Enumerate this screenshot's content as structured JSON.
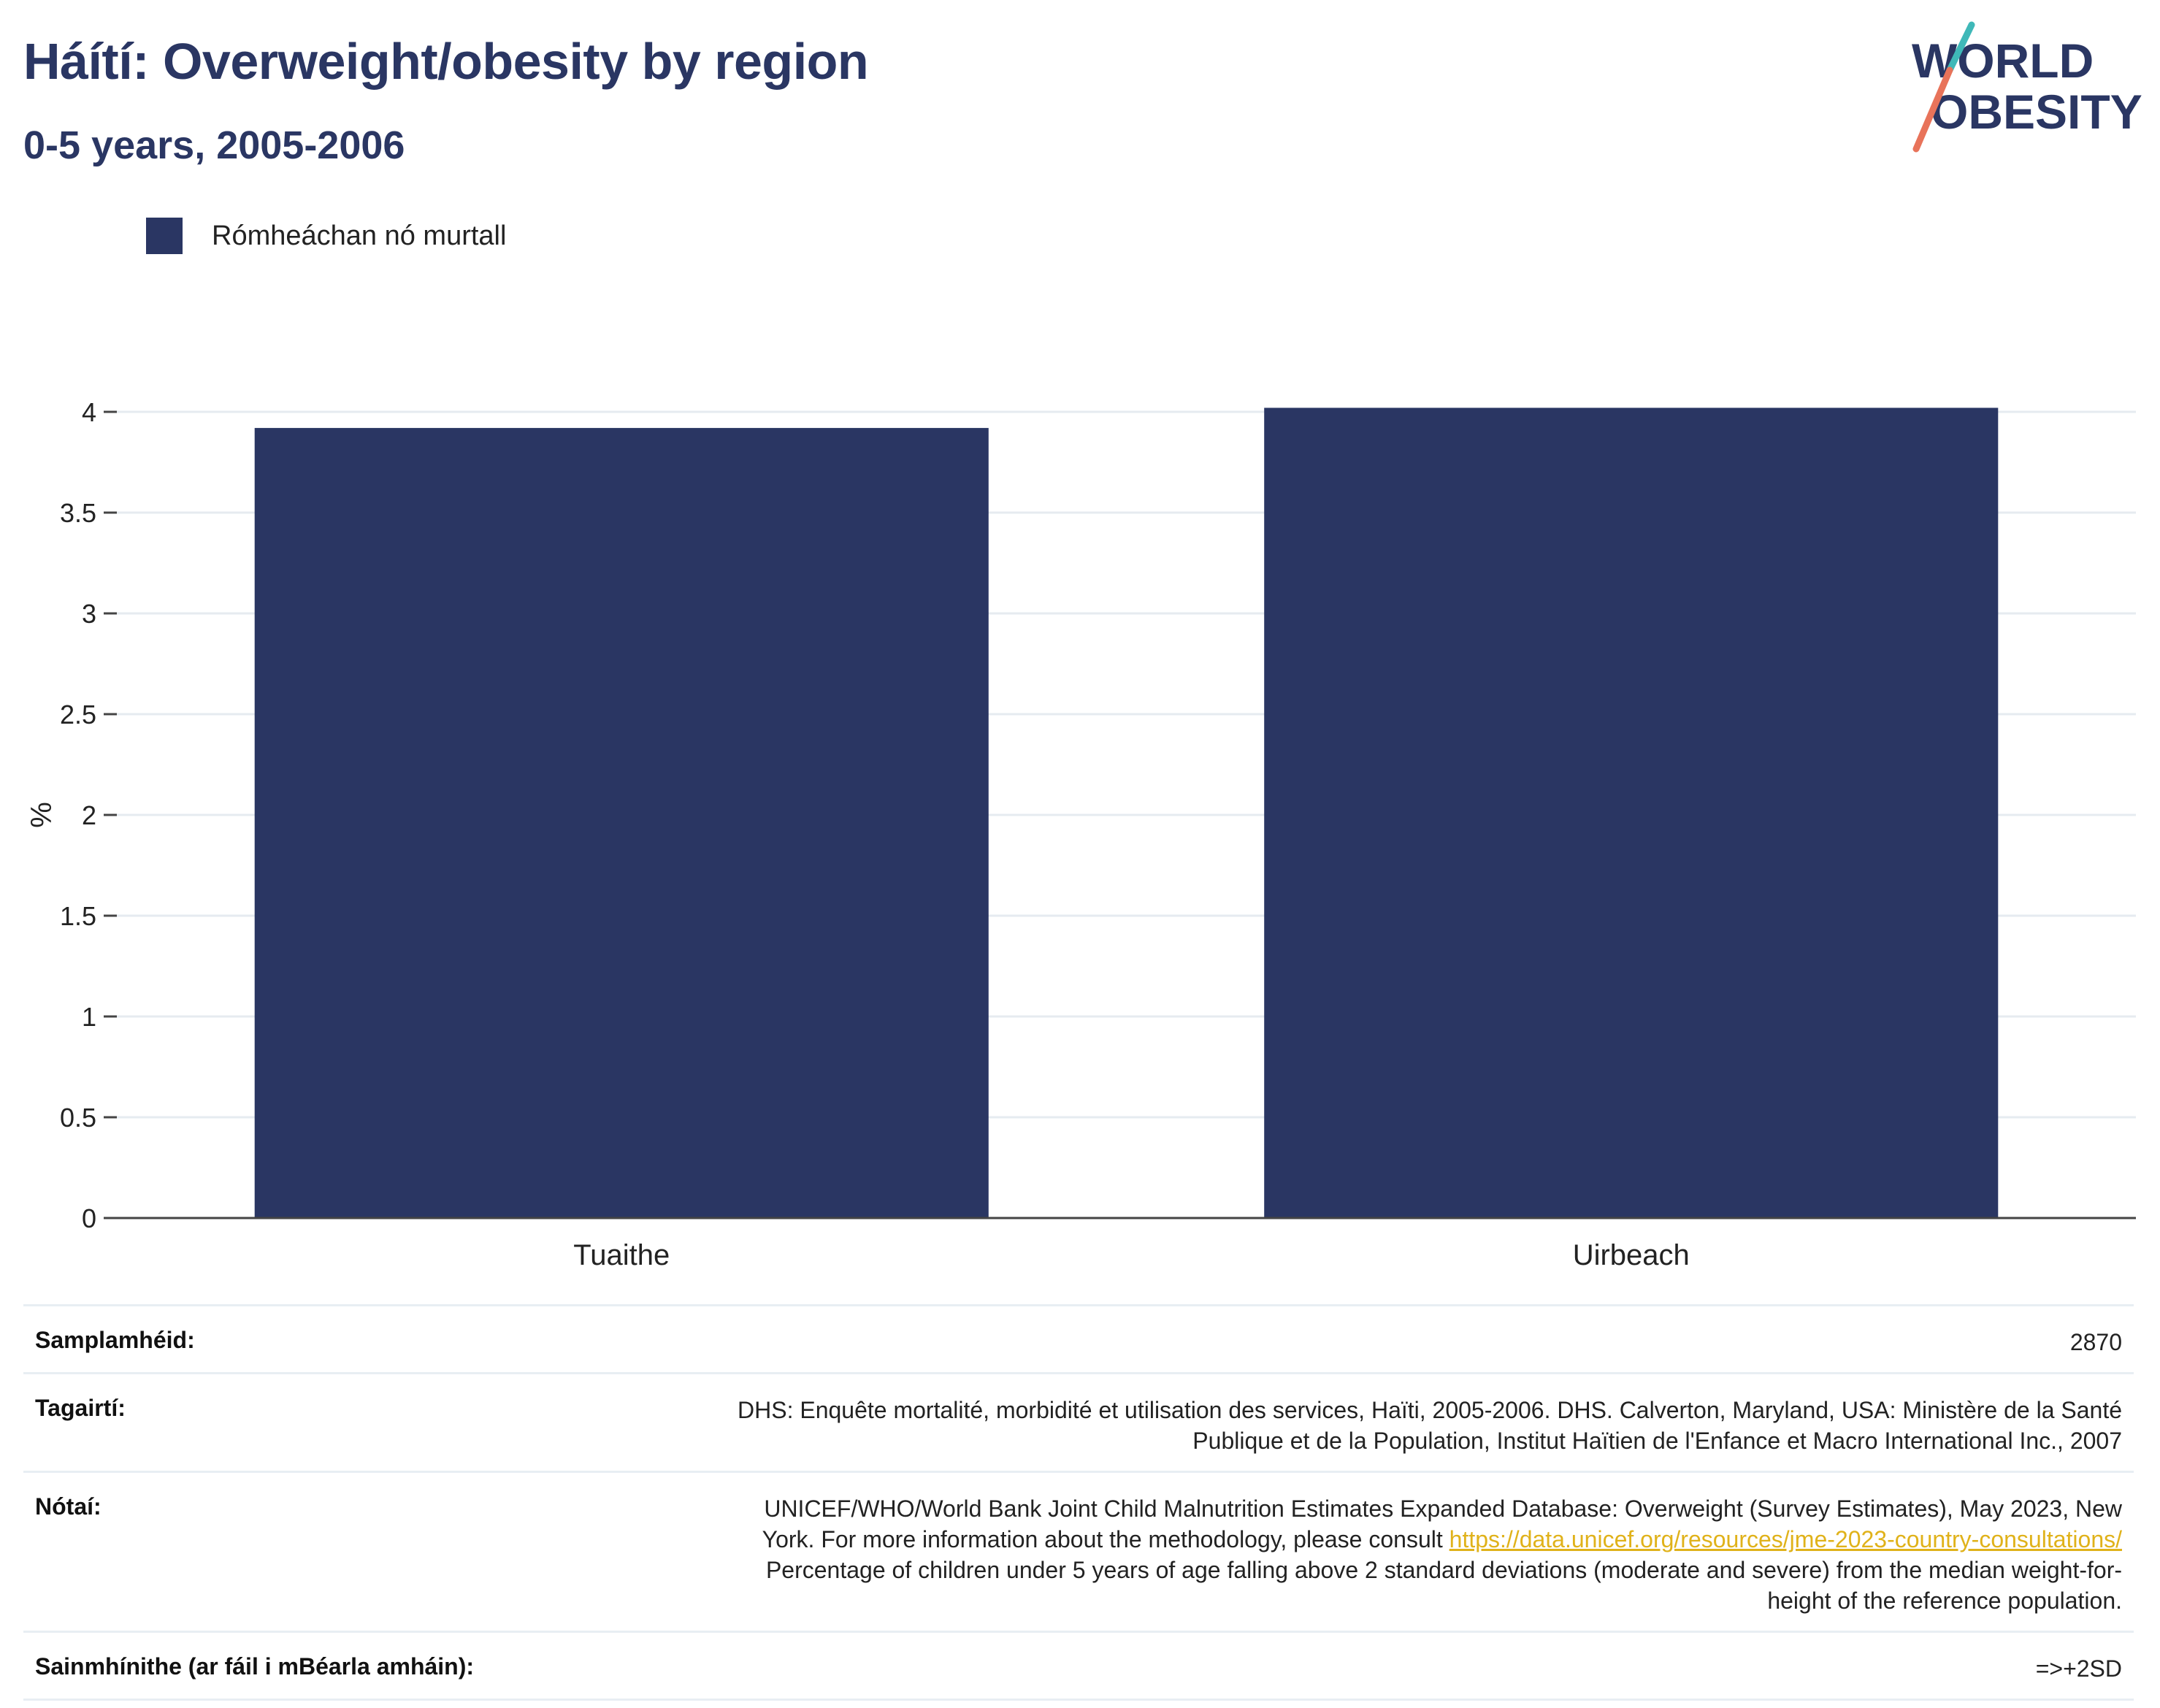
{
  "title": "Háítí: Overweight/obesity by region",
  "subtitle": "0-5 years, 2005-2006",
  "logo": {
    "line1": "WORLD",
    "line2": "OBESITY"
  },
  "colors": {
    "bar": "#2a3663",
    "title": "#2a3663",
    "link": "#e0b21a"
  },
  "legend": {
    "label": "Rómheáchan nó murtall"
  },
  "chart_data": {
    "type": "bar",
    "categories": [
      "Tuaithe",
      "Uirbeach"
    ],
    "series": [
      {
        "name": "Rómheáchan nó murtall",
        "values": [
          3.92,
          4.02
        ]
      }
    ],
    "ylabel": "%",
    "ylim": [
      0,
      4
    ],
    "yticks": [
      "0",
      "0.5",
      "1",
      "1.5",
      "2",
      "2.5",
      "3",
      "3.5",
      "4"
    ],
    "grid": true,
    "legend_position": "top-left"
  },
  "meta": {
    "sample": {
      "key": "Samplamhéid:",
      "value": "2870"
    },
    "references": {
      "key": "Tagairtí:",
      "line1": "DHS: Enquête mortalité, morbidité et utilisation des services, Haïti, 2005-2006. DHS. Calverton, Maryland, USA: Ministère de la Santé",
      "line2": "Publique et de la Population, Institut Haïtien de l'Enfance et Macro International Inc., 2007"
    },
    "notes": {
      "key": "Nótaí:",
      "line1": "UNICEF/WHO/World Bank Joint Child Malnutrition Estimates Expanded Database: Overweight (Survey Estimates), May 2023, New",
      "line2_pre": "York. For more information about the methodology, please consult ",
      "link": "https://data.unicef.org/resources/jme-2023-country-consultations/",
      "line3": "Percentage of children under 5 years of age falling above 2 standard deviations (moderate and severe) from the median weight-for-",
      "line4": "height of the reference population."
    },
    "definitions": {
      "key": "Sainmhínithe (ar fáil i mBéarla amháin):",
      "value": "=>+2SD"
    }
  }
}
